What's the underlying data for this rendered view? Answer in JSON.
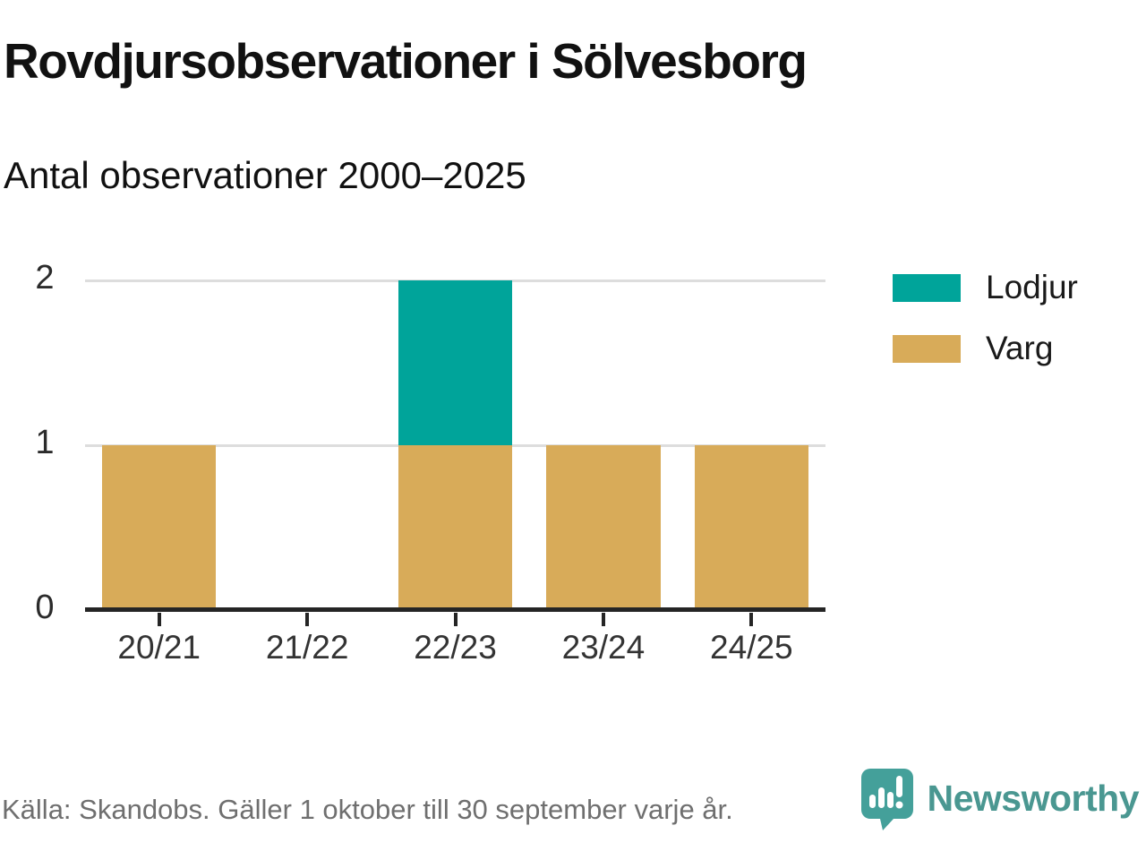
{
  "header": {
    "title": "Rovdjursobservationer i Sölvesborg",
    "subtitle": "Antal observationer 2000–2025"
  },
  "footer": {
    "source": "Källa: Skandobs. Gäller 1 oktober till 30 september varje år.",
    "brand": "Newsworthy"
  },
  "colors": {
    "lodjur": "#00A49A",
    "varg": "#D8AB59",
    "gridline": "#dddddd",
    "axis": "#252525",
    "brand_bubble": "#44A09A",
    "brand_text": "#4A9791"
  },
  "chart_data": {
    "type": "bar",
    "stacked": true,
    "categories": [
      "20/21",
      "21/22",
      "22/23",
      "23/24",
      "24/25"
    ],
    "series": [
      {
        "name": "Lodjur",
        "color": "#00A49A",
        "values": [
          0,
          0,
          1,
          0,
          0
        ]
      },
      {
        "name": "Varg",
        "color": "#D8AB59",
        "values": [
          1,
          0,
          1,
          1,
          1
        ]
      }
    ],
    "title": "Rovdjursobservationer i Sölvesborg",
    "subtitle": "Antal observationer 2000–2025",
    "xlabel": "",
    "ylabel": "",
    "ylim": [
      0,
      2
    ],
    "yticks": [
      0,
      1,
      2
    ],
    "grid": "horizontal",
    "legend_position": "right-top"
  }
}
